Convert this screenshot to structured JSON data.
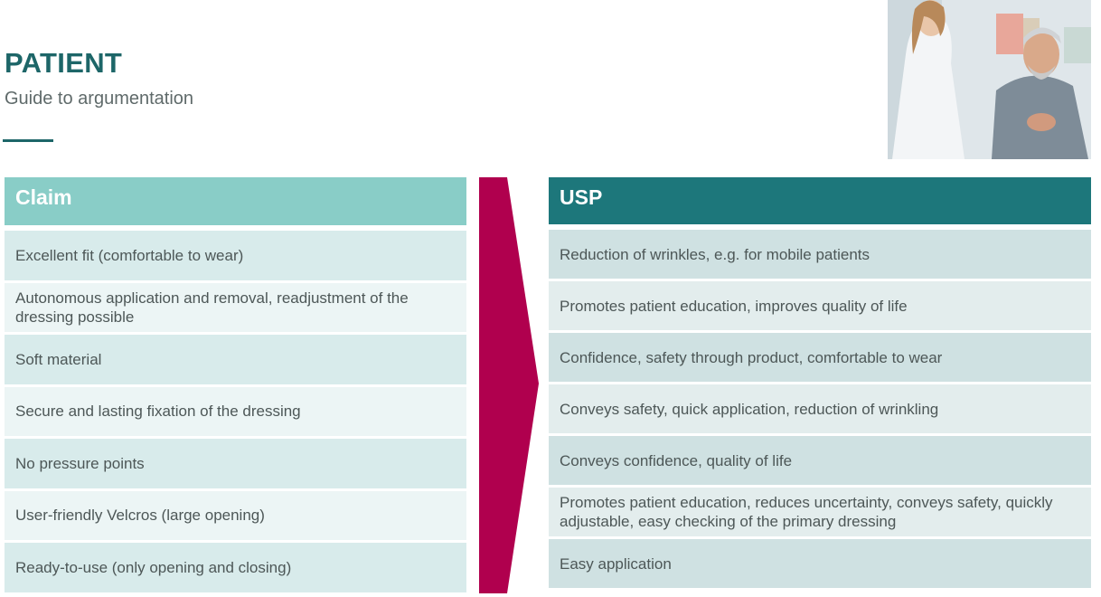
{
  "header": {
    "title": "PATIENT",
    "subtitle": "Guide to argumentation"
  },
  "colors": {
    "title": "#1d6668",
    "claim_header": "#89cdc7",
    "usp_header": "#1d777b",
    "arrow": "#b0004e"
  },
  "claim": {
    "heading": "Claim",
    "items": [
      "Excellent fit (comfortable to wear)",
      "Autonomous application and removal, readjustment of the dressing possible",
      "Soft material",
      "Secure and lasting fixation of the dressing",
      "No pressure points",
      "User-friendly Velcros (large opening)",
      "Ready-to-use (only opening and closing)"
    ]
  },
  "usp": {
    "heading": "USP",
    "items": [
      "Reduction of wrinkles, e.g. for mobile patients",
      "Promotes patient education, improves quality of life",
      "Confidence, safety through product, comfortable to wear",
      "Conveys safety, quick application, reduction of wrinkling",
      "Conveys confidence, quality of life",
      "Promotes patient education, reduces uncertainty, conveys safety, quickly adjustable, easy checking of the primary dressing",
      "Easy application"
    ]
  }
}
